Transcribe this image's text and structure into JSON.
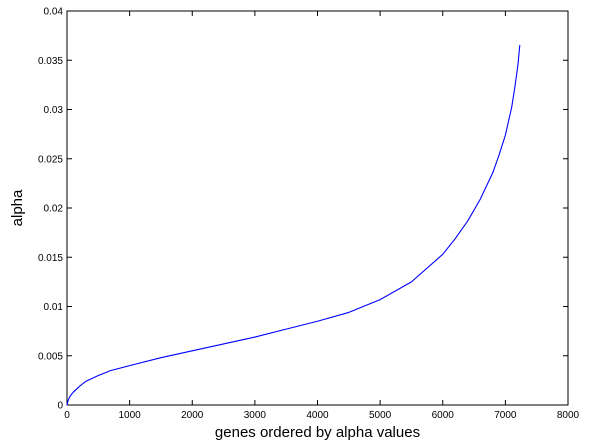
{
  "chart_data": {
    "type": "line",
    "title": "",
    "xlabel": "genes ordered by alpha values",
    "ylabel": "alpha",
    "xlim": [
      0,
      8000
    ],
    "ylim": [
      0,
      0.04
    ],
    "xticks": [
      0,
      1000,
      2000,
      3000,
      4000,
      5000,
      6000,
      7000,
      8000
    ],
    "yticks": [
      0,
      0.005,
      0.01,
      0.015,
      0.02,
      0.025,
      0.03,
      0.035,
      0.04
    ],
    "xtick_labels": [
      "0",
      "1000",
      "2000",
      "3000",
      "4000",
      "5000",
      "6000",
      "7000",
      "8000"
    ],
    "ytick_labels": [
      "0",
      "0.005",
      "0.01",
      "0.015",
      "0.02",
      "0.025",
      "0.03",
      "0.035",
      "0.04"
    ],
    "grid": false,
    "series": [
      {
        "color": "#0000ff",
        "x": [
          0,
          20,
          50,
          100,
          200,
          300,
          500,
          700,
          1000,
          1500,
          2000,
          2500,
          3000,
          3500,
          4000,
          4500,
          5000,
          5500,
          6000,
          6200,
          6400,
          6600,
          6800,
          6900,
          7000,
          7100,
          7150,
          7200,
          7230
        ],
        "y": [
          0,
          0.0005,
          0.0009,
          0.0013,
          0.0019,
          0.0024,
          0.003,
          0.0035,
          0.004,
          0.0048,
          0.0055,
          0.0062,
          0.0069,
          0.0077,
          0.0085,
          0.0094,
          0.0107,
          0.0125,
          0.0153,
          0.0169,
          0.0187,
          0.0209,
          0.0236,
          0.0254,
          0.0274,
          0.0302,
          0.0322,
          0.0345,
          0.0365
        ]
      }
    ]
  }
}
